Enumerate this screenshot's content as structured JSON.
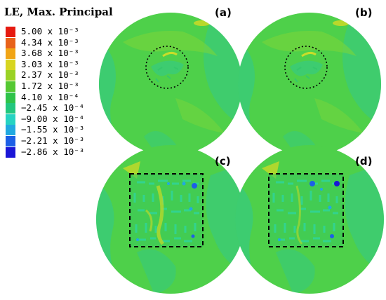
{
  "legend": {
    "title": "LE, Max. Principal",
    "items": [
      {
        "label": "5.00 x 10⁻³",
        "color": "#e61a10"
      },
      {
        "label": "4.34 x 10⁻³",
        "color": "#e8621a"
      },
      {
        "label": "3.68 x 10⁻³",
        "color": "#f1a515"
      },
      {
        "label": "3.03 x 10⁻³",
        "color": "#d7d520"
      },
      {
        "label": "2.37 x 10⁻³",
        "color": "#9ad225"
      },
      {
        "label": "1.72 x 10⁻³",
        "color": "#55c832"
      },
      {
        "label": "4.10 x 10⁻⁴",
        "color": "#2ec34a"
      },
      {
        "label": "−2.45 x 10⁻⁴",
        "color": "#22c77e"
      },
      {
        "label": "−9.00 x 10⁻⁴",
        "color": "#26d3c2"
      },
      {
        "label": "−1.55 x 10⁻³",
        "color": "#21a9e0"
      },
      {
        "label": "−2.21 x 10⁻³",
        "color": "#1c5fe6"
      },
      {
        "label": "−2.86 x 10⁻³",
        "color": "#1a16d6"
      }
    ]
  },
  "panels": [
    {
      "label": "(a)",
      "marker": "circle"
    },
    {
      "label": "(b)",
      "marker": "circle"
    },
    {
      "label": "(c)",
      "marker": "square"
    },
    {
      "label": "(d)",
      "marker": "square"
    }
  ],
  "colors": {
    "background": "#ffffff",
    "disk_base": "#4ed04a",
    "disk_highlight": "#7ad63a",
    "disk_cool": "#2fc890",
    "disk_yellow": "#b9d82b",
    "marker": "#000000"
  }
}
